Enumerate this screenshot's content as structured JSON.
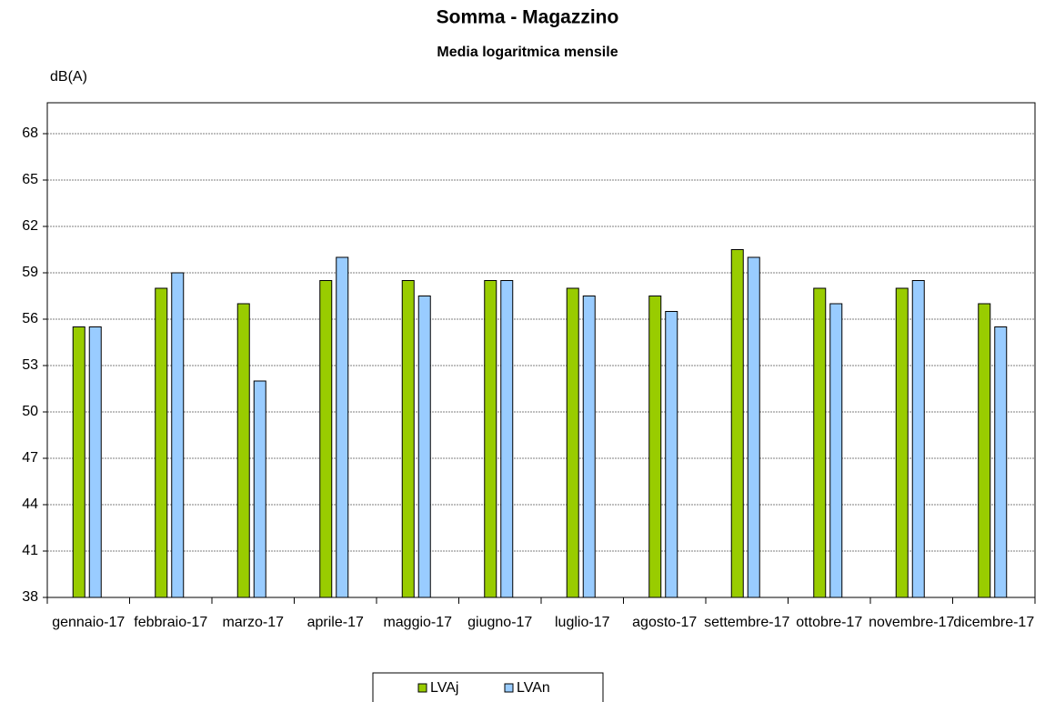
{
  "chart_data": {
    "type": "bar",
    "title": "Somma - Magazzino",
    "subtitle": "Media logaritmica mensile",
    "y_label": "dB(A)",
    "categories": [
      "gennaio-17",
      "febbraio-17",
      "marzo-17",
      "aprile-17",
      "maggio-17",
      "giugno-17",
      "luglio-17",
      "agosto-17",
      "settembre-17",
      "ottobre-17",
      "novembre-17",
      "dicembre-17"
    ],
    "series": [
      {
        "name": "LVAj",
        "color": "#99cc00",
        "values": [
          55.5,
          58,
          57,
          58.5,
          58.5,
          58.5,
          58,
          57.5,
          60.5,
          58,
          58,
          57
        ]
      },
      {
        "name": "LVAn",
        "color": "#99ccff",
        "values": [
          55.5,
          59,
          52,
          60,
          57.5,
          58.5,
          57.5,
          56.5,
          60,
          57,
          58.5,
          55.5
        ]
      }
    ],
    "ylim": [
      38,
      70
    ],
    "yticks": [
      38,
      41,
      44,
      47,
      50,
      53,
      56,
      59,
      62,
      65,
      68
    ],
    "grid": true
  }
}
